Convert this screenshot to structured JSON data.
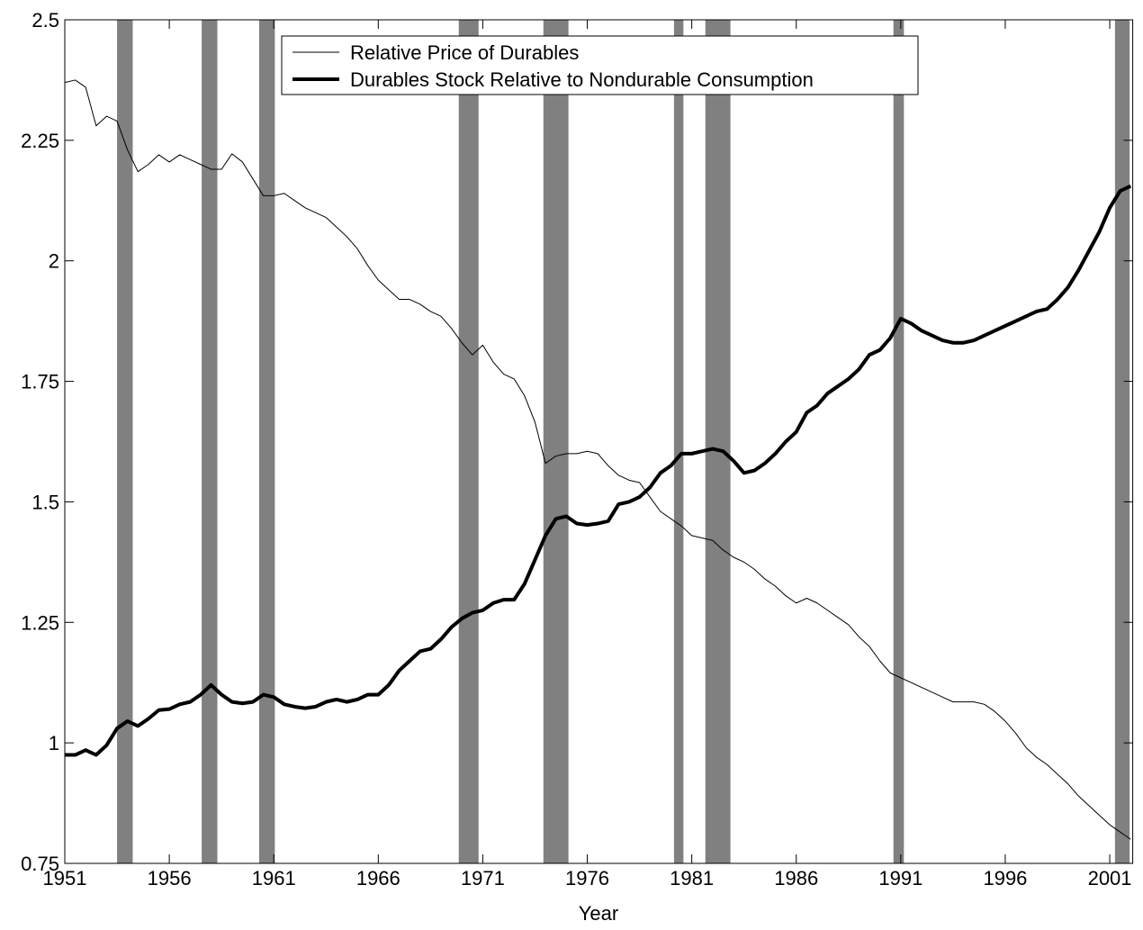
{
  "chart_data": {
    "type": "line",
    "xlabel": "Year",
    "x": [
      1951,
      1951.5,
      1952,
      1952.5,
      1953,
      1953.5,
      1954,
      1954.5,
      1955,
      1955.5,
      1956,
      1956.5,
      1957,
      1957.5,
      1958,
      1958.5,
      1959,
      1959.5,
      1960,
      1960.5,
      1961,
      1961.5,
      1962,
      1962.5,
      1963,
      1963.5,
      1964,
      1964.5,
      1965,
      1965.5,
      1966,
      1966.5,
      1967,
      1967.5,
      1968,
      1968.5,
      1969,
      1969.5,
      1970,
      1970.5,
      1971,
      1971.5,
      1972,
      1972.5,
      1973,
      1973.5,
      1974,
      1974.5,
      1975,
      1975.5,
      1976,
      1976.5,
      1977,
      1977.5,
      1978,
      1978.5,
      1979,
      1979.5,
      1980,
      1980.5,
      1981,
      1981.5,
      1982,
      1982.5,
      1983,
      1983.5,
      1984,
      1984.5,
      1985,
      1985.5,
      1986,
      1986.5,
      1987,
      1987.5,
      1988,
      1988.5,
      1989,
      1989.5,
      1990,
      1990.5,
      1991,
      1991.5,
      1992,
      1992.5,
      1993,
      1993.5,
      1994,
      1994.5,
      1995,
      1995.5,
      1996,
      1996.5,
      1997,
      1997.5,
      1998,
      1998.5,
      1999,
      1999.5,
      2000,
      2000.5,
      2001,
      2001.5,
      2002
    ],
    "series": [
      {
        "name": "Relative Price of Durables",
        "color": "#000000",
        "line_width": 1,
        "values": [
          2.37,
          2.375,
          2.36,
          2.28,
          2.3,
          2.29,
          2.23,
          2.185,
          2.2,
          2.22,
          2.205,
          2.22,
          2.21,
          2.2,
          2.19,
          2.19,
          2.222,
          2.205,
          2.17,
          2.135,
          2.135,
          2.14,
          2.125,
          2.11,
          2.1,
          2.09,
          2.07,
          2.05,
          2.025,
          1.99,
          1.96,
          1.94,
          1.92,
          1.92,
          1.91,
          1.895,
          1.885,
          1.86,
          1.83,
          1.805,
          1.825,
          1.79,
          1.765,
          1.755,
          1.72,
          1.665,
          1.58,
          1.595,
          1.6,
          1.6,
          1.605,
          1.6,
          1.575,
          1.555,
          1.545,
          1.54,
          1.51,
          1.48,
          1.465,
          1.45,
          1.43,
          1.425,
          1.42,
          1.4,
          1.385,
          1.375,
          1.36,
          1.34,
          1.325,
          1.305,
          1.29,
          1.3,
          1.29,
          1.275,
          1.26,
          1.245,
          1.22,
          1.2,
          1.17,
          1.145,
          1.135,
          1.125,
          1.115,
          1.105,
          1.095,
          1.085,
          1.085,
          1.085,
          1.08,
          1.065,
          1.045,
          1.02,
          0.99,
          0.97,
          0.955,
          0.935,
          0.915,
          0.89,
          0.87,
          0.85,
          0.83,
          0.815,
          0.8
        ]
      },
      {
        "name": "Durables Stock Relative to Nondurable Consumption",
        "color": "#000000",
        "line_width": 4,
        "values": [
          0.975,
          0.975,
          0.985,
          0.975,
          0.995,
          1.03,
          1.045,
          1.035,
          1.05,
          1.068,
          1.07,
          1.08,
          1.085,
          1.1,
          1.12,
          1.1,
          1.085,
          1.082,
          1.085,
          1.1,
          1.095,
          1.08,
          1.075,
          1.072,
          1.075,
          1.085,
          1.09,
          1.085,
          1.09,
          1.1,
          1.1,
          1.12,
          1.15,
          1.17,
          1.19,
          1.195,
          1.215,
          1.24,
          1.258,
          1.27,
          1.275,
          1.29,
          1.297,
          1.297,
          1.33,
          1.38,
          1.43,
          1.465,
          1.47,
          1.455,
          1.452,
          1.455,
          1.46,
          1.495,
          1.5,
          1.51,
          1.53,
          1.56,
          1.575,
          1.6,
          1.6,
          1.605,
          1.61,
          1.605,
          1.585,
          1.56,
          1.565,
          1.58,
          1.6,
          1.625,
          1.645,
          1.685,
          1.7,
          1.725,
          1.74,
          1.755,
          1.775,
          1.805,
          1.815,
          1.84,
          1.88,
          1.87,
          1.855,
          1.845,
          1.835,
          1.83,
          1.83,
          1.835,
          1.845,
          1.855,
          1.865,
          1.875,
          1.885,
          1.895,
          1.9,
          1.92,
          1.945,
          1.98,
          2.02,
          2.06,
          2.11,
          2.145,
          2.155
        ]
      }
    ],
    "shaded_regions": [
      [
        1953.5,
        1954.25
      ],
      [
        1957.55,
        1958.3
      ],
      [
        1960.3,
        1961.05
      ],
      [
        1969.85,
        1970.8
      ],
      [
        1973.9,
        1975.1
      ],
      [
        1980.15,
        1980.6
      ],
      [
        1981.65,
        1982.85
      ],
      [
        1990.65,
        1991.15
      ],
      [
        2001.25,
        2001.95
      ]
    ],
    "shade_color": "#808080",
    "xlim": [
      1951,
      2002.1
    ],
    "xticks": [
      1951,
      1956,
      1961,
      1966,
      1971,
      1976,
      1981,
      1986,
      1991,
      1996,
      2001
    ],
    "ylim": [
      0.75,
      2.5
    ],
    "yticks": [
      0.75,
      1,
      1.25,
      1.5,
      1.75,
      2,
      2.25,
      2.5
    ],
    "grid": false,
    "legend": "upper center"
  }
}
